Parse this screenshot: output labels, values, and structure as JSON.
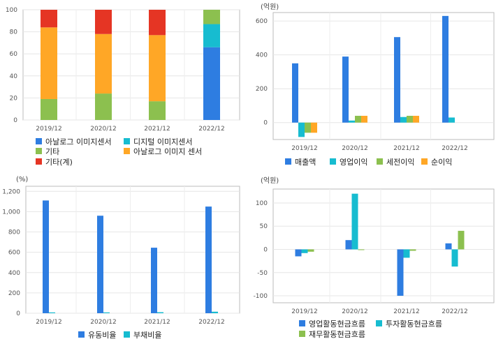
{
  "chart_data": [
    {
      "type": "bar",
      "stacked": true,
      "categories": [
        "2019/12",
        "2020/12",
        "2021/12",
        "2022/12"
      ],
      "ylim": [
        0,
        100
      ],
      "yticks": [
        "0",
        "20",
        "40",
        "60",
        "80",
        "100"
      ],
      "grid": true,
      "legend_position": "bottom",
      "series": [
        {
          "name": "아날로그 이미지센서",
          "color": "#2e7de1",
          "values": [
            0,
            0,
            0,
            66
          ]
        },
        {
          "name": "디지털 이미지센서",
          "color": "#17bcd0",
          "values": [
            0,
            0,
            0,
            21
          ]
        },
        {
          "name": "기타",
          "color": "#8cc04f",
          "values": [
            19,
            24,
            17,
            13
          ]
        },
        {
          "name": "아날로그 이미지 센서",
          "color": "#ffa726",
          "values": [
            65,
            54,
            60,
            0
          ]
        },
        {
          "name": "기타(계)",
          "color": "#e53524",
          "values": [
            16,
            22,
            23,
            0
          ]
        }
      ]
    },
    {
      "type": "bar",
      "unit": "(억원)",
      "categories": [
        "2019/12",
        "2020/12",
        "2021/12",
        "2022/12"
      ],
      "ylim": [
        -100,
        650
      ],
      "yticks": [
        "0",
        "200",
        "400",
        "600"
      ],
      "grid": true,
      "legend_position": "bottom",
      "series": [
        {
          "name": "매출액",
          "color": "#2e7de1",
          "values": [
            350,
            390,
            505,
            630
          ]
        },
        {
          "name": "영업이익",
          "color": "#17bcd0",
          "values": [
            -85,
            12,
            33,
            30
          ]
        },
        {
          "name": "세전이익",
          "color": "#8cc04f",
          "values": [
            -60,
            40,
            40,
            null
          ]
        },
        {
          "name": "순이익",
          "color": "#ffa726",
          "values": [
            -60,
            40,
            40,
            null
          ]
        }
      ]
    },
    {
      "type": "bar",
      "unit": "(%)",
      "categories": [
        "2019/12",
        "2020/12",
        "2021/12",
        "2022/12"
      ],
      "ylim": [
        0,
        1250
      ],
      "yticks": [
        "0",
        "200",
        "400",
        "600",
        "800",
        "1,000",
        "1,200"
      ],
      "grid": true,
      "legend_position": "bottom",
      "series": [
        {
          "name": "유동비율",
          "color": "#2e7de1",
          "values": [
            1110,
            960,
            645,
            1050
          ]
        },
        {
          "name": "부채비율",
          "color": "#17bcd0",
          "values": [
            8,
            8,
            10,
            15
          ]
        }
      ]
    },
    {
      "type": "bar",
      "unit": "(억원)",
      "categories": [
        "2019/12",
        "2020/12",
        "2021/12",
        "2022/12"
      ],
      "ylim": [
        -115,
        130
      ],
      "yticks": [
        "-100",
        "-50",
        "0",
        "50",
        "100"
      ],
      "grid": true,
      "legend_position": "bottom",
      "series": [
        {
          "name": "영업활동현금흐름",
          "color": "#2e7de1",
          "values": [
            -15,
            20,
            -100,
            13
          ]
        },
        {
          "name": "투자활동현금흐름",
          "color": "#17bcd0",
          "values": [
            -8,
            120,
            -18,
            -37
          ]
        },
        {
          "name": "재무활동현금흐름",
          "color": "#8cc04f",
          "values": [
            -5,
            -1,
            -3,
            40
          ]
        }
      ]
    }
  ]
}
